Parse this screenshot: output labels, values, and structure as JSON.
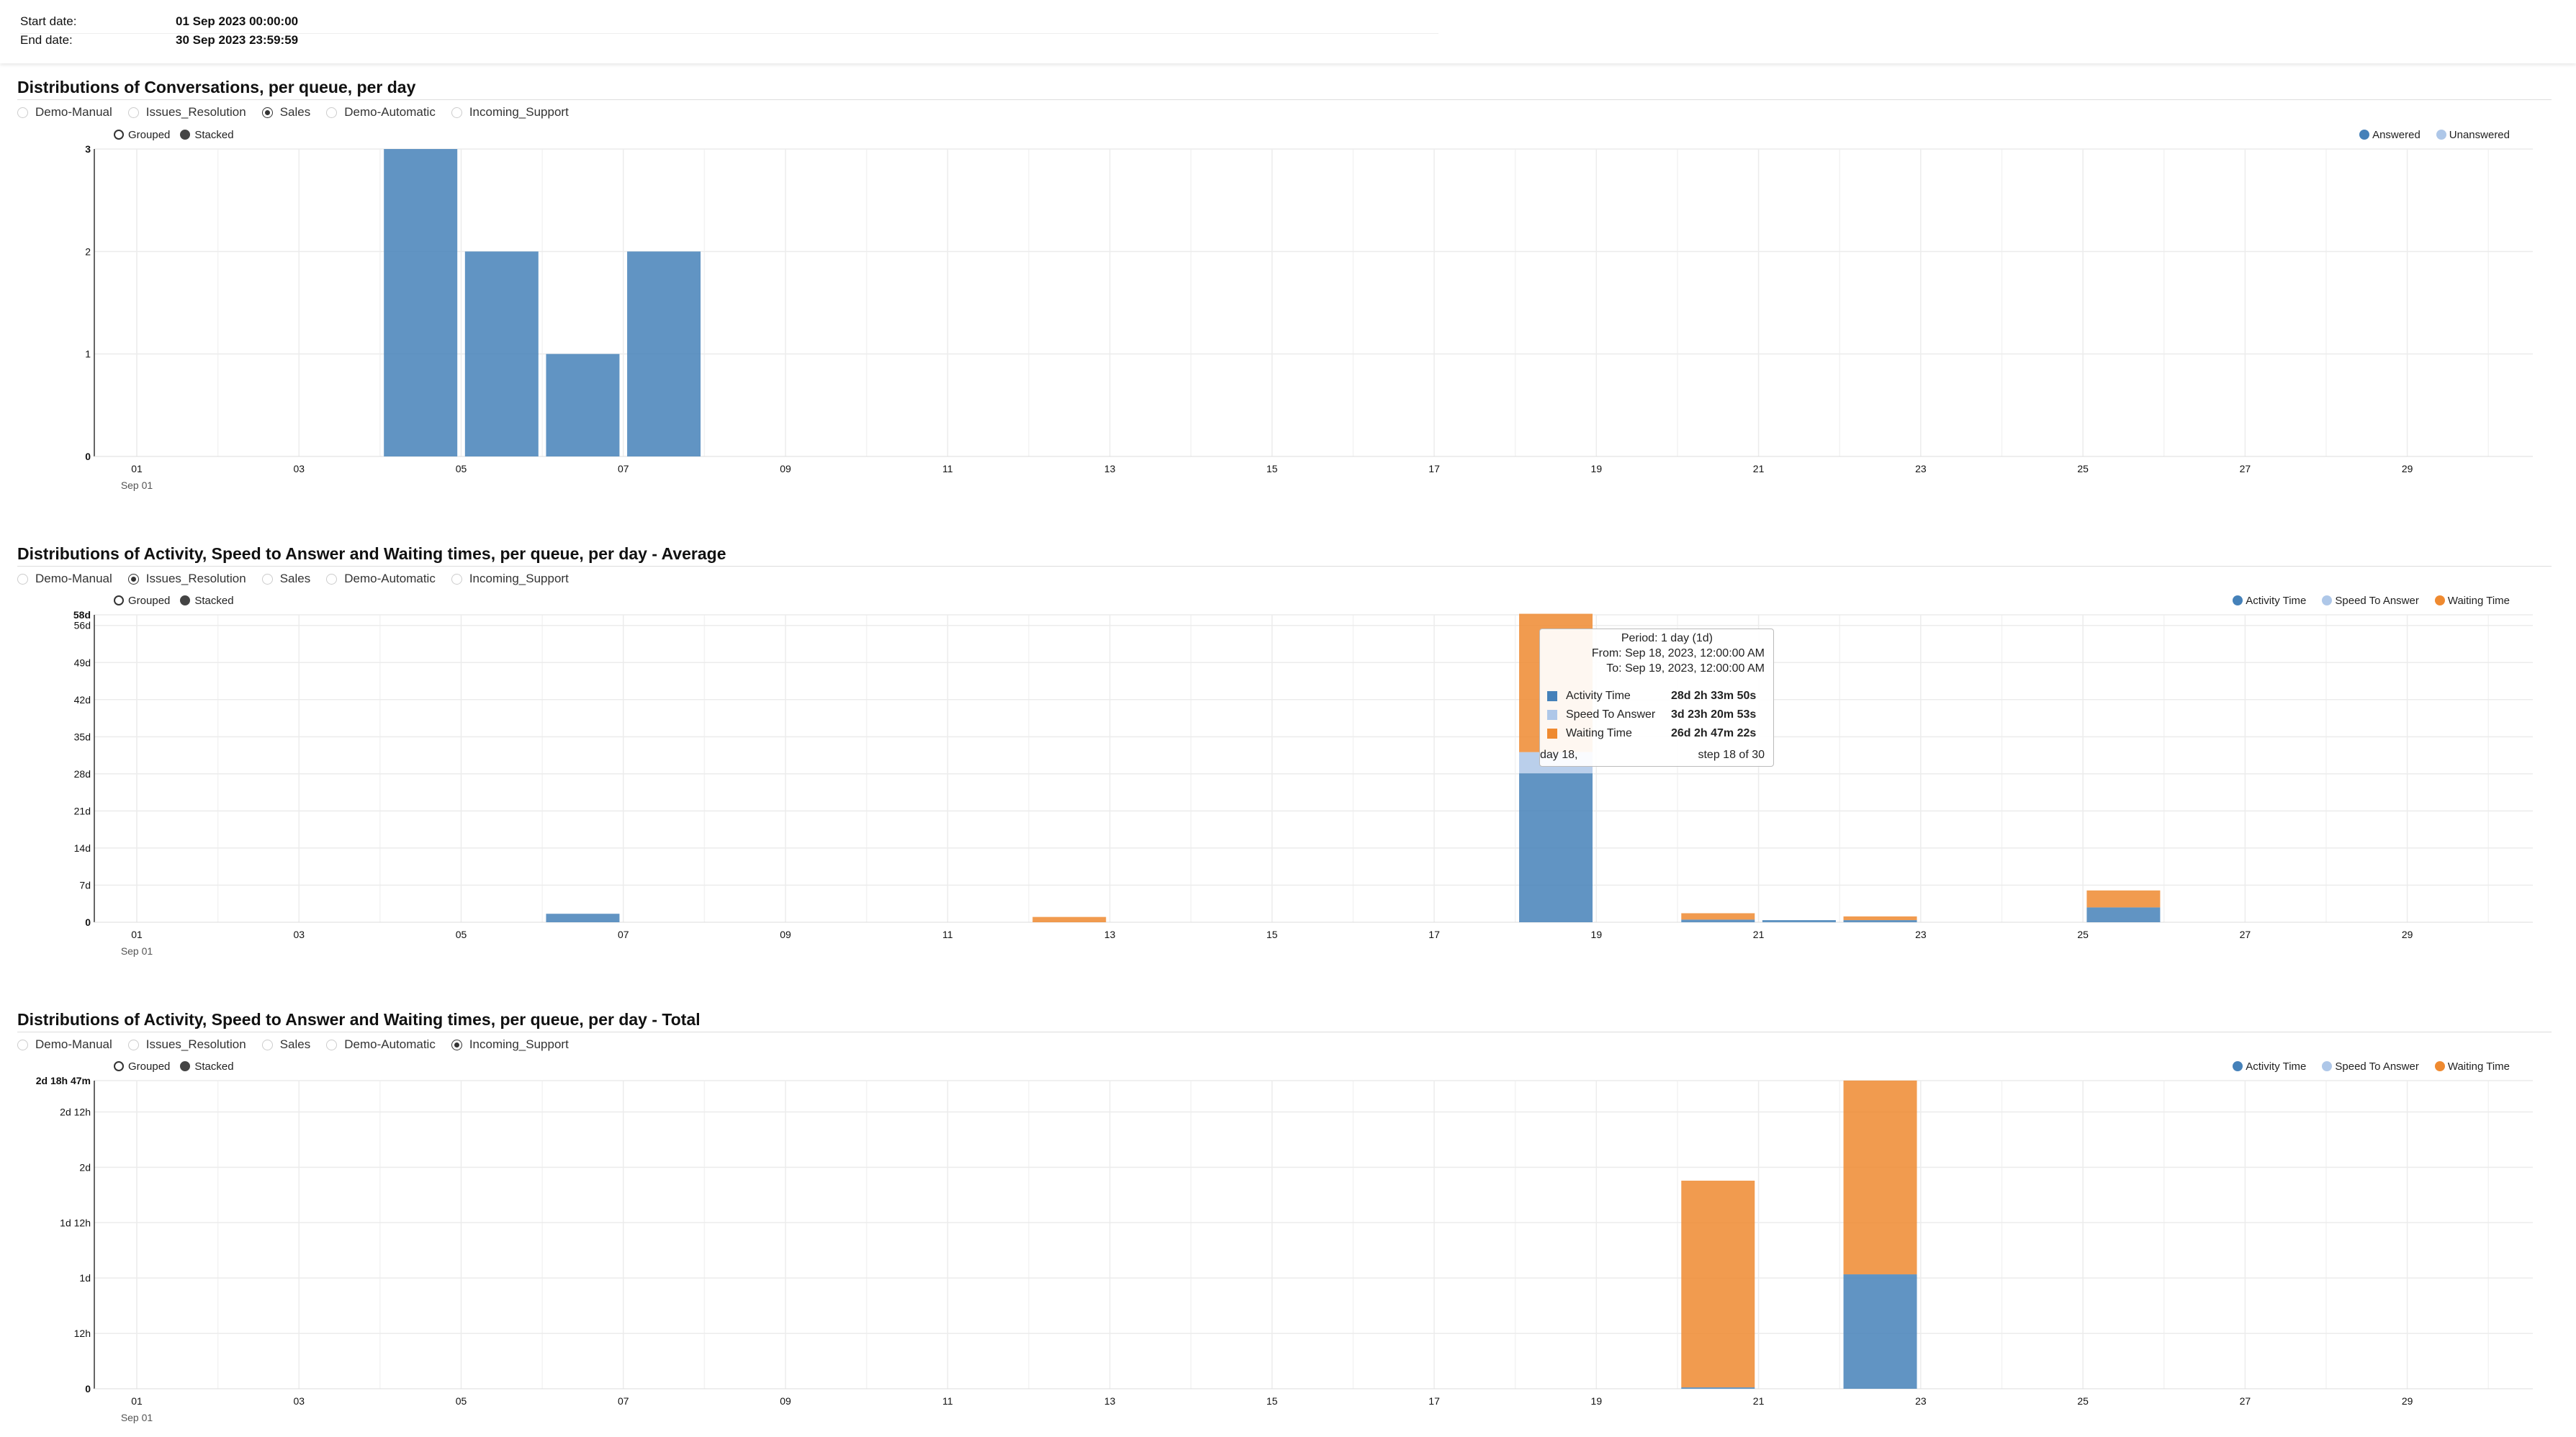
{
  "header": {
    "start_label": "Start date:",
    "start_value": "01 Sep 2023 00:00:00",
    "end_label": "End date:",
    "end_value": "30 Sep 2023 23:59:59"
  },
  "colors": {
    "answered": "#4581b9",
    "unanswered": "#aec7e8",
    "activity": "#4581b9",
    "speed": "#aec7e8",
    "waiting": "#ef8a30"
  },
  "queues": [
    "Demo-Manual",
    "Issues_Resolution",
    "Sales",
    "Demo-Automatic",
    "Incoming_Support"
  ],
  "modes": [
    "Grouped",
    "Stacked"
  ],
  "sections": [
    {
      "title": "Distributions of Conversations, per queue, per day",
      "selected_queue": 2,
      "legend": [
        {
          "label": "Answered",
          "color": "#4581b9"
        },
        {
          "label": "Unanswered",
          "color": "#aec7e8"
        }
      ]
    },
    {
      "title": "Distributions of Activity, Speed to Answer and Waiting times, per queue, per day - Average",
      "selected_queue": 1,
      "legend": [
        {
          "label": "Activity Time",
          "color": "#4581b9"
        },
        {
          "label": "Speed To Answer",
          "color": "#aec7e8"
        },
        {
          "label": "Waiting Time",
          "color": "#ef8a30"
        }
      ]
    },
    {
      "title": "Distributions of Activity, Speed to Answer and Waiting times, per queue, per day - Total",
      "selected_queue": 4,
      "legend": [
        {
          "label": "Activity Time",
          "color": "#4581b9"
        },
        {
          "label": "Speed To Answer",
          "color": "#aec7e8"
        },
        {
          "label": "Waiting Time",
          "color": "#ef8a30"
        }
      ]
    }
  ],
  "chart_data": [
    {
      "type": "bar",
      "mode": "stacked",
      "x_unit": "day of Sep 2023",
      "x_tick_labels": [
        "01",
        "03",
        "05",
        "07",
        "09",
        "11",
        "13",
        "15",
        "17",
        "19",
        "21",
        "23",
        "25",
        "27",
        "29"
      ],
      "x_sublabel": "Sep 01",
      "y_unit": "conversations",
      "ylim": [
        0,
        3
      ],
      "y_tick_labels": [
        "0",
        "1",
        "2",
        "3"
      ],
      "y_ticks": [
        0,
        1,
        2,
        3
      ],
      "grid": true,
      "legend_position": "top-right",
      "series": [
        {
          "name": "Answered",
          "color": "#4581b9",
          "points": [
            [
              4,
              3
            ],
            [
              5,
              2
            ],
            [
              6,
              1
            ],
            [
              7,
              2
            ]
          ]
        },
        {
          "name": "Unanswered",
          "color": "#aec7e8",
          "points": []
        }
      ]
    },
    {
      "type": "bar",
      "mode": "stacked",
      "x_unit": "day of Sep 2023",
      "x_tick_labels": [
        "01",
        "03",
        "05",
        "07",
        "09",
        "11",
        "13",
        "15",
        "17",
        "19",
        "21",
        "23",
        "25",
        "27",
        "29"
      ],
      "x_sublabel": "Sep 01",
      "y_unit": "days",
      "ylim": [
        0,
        58
      ],
      "y_tick_labels": [
        "0",
        "7d",
        "14d",
        "21d",
        "28d",
        "35d",
        "42d",
        "49d",
        "56d",
        "58d"
      ],
      "y_ticks": [
        0,
        7,
        14,
        21,
        28,
        35,
        42,
        49,
        56,
        58
      ],
      "grid": true,
      "legend_position": "top-right",
      "series": [
        {
          "name": "Activity Time",
          "color": "#4581b9",
          "points": [
            [
              6,
              1.6
            ],
            [
              18,
              28.1
            ],
            [
              20,
              0.5
            ],
            [
              21,
              0.4
            ],
            [
              22,
              0.4
            ],
            [
              25,
              2.8
            ]
          ]
        },
        {
          "name": "Speed To Answer",
          "color": "#aec7e8",
          "points": [
            [
              18,
              4.0
            ]
          ]
        },
        {
          "name": "Waiting Time",
          "color": "#ef8a30",
          "points": [
            [
              12,
              1.0
            ],
            [
              18,
              26.1
            ],
            [
              20,
              1.2
            ],
            [
              22,
              0.7
            ],
            [
              25,
              3.2
            ]
          ]
        }
      ],
      "tooltip": {
        "day": 18,
        "title": "Period: 1 day (1d)",
        "from": "From: Sep 18, 2023, 12:00:00 AM",
        "to": "To: Sep 19, 2023, 12:00:00 AM",
        "rows": [
          {
            "name": "Activity Time",
            "value": "28d 2h 33m 50s",
            "color": "#4581b9"
          },
          {
            "name": "Speed To Answer",
            "value": "3d 23h 20m 53s",
            "color": "#aec7e8"
          },
          {
            "name": "Waiting Time",
            "value": "26d 2h 47m 22s",
            "color": "#ef8a30"
          }
        ],
        "footer_left": "day 18,",
        "footer_right": "step 18 of 30"
      }
    },
    {
      "type": "bar",
      "mode": "stacked",
      "x_unit": "day of Sep 2023",
      "x_tick_labels": [
        "01",
        "03",
        "05",
        "07",
        "09",
        "11",
        "13",
        "15",
        "17",
        "19",
        "21",
        "23",
        "25",
        "27",
        "29"
      ],
      "x_sublabel": "Sep 01",
      "y_unit": "hours",
      "ylim": [
        0,
        66.78
      ],
      "y_tick_labels": [
        "0",
        "12h",
        "1d",
        "1d 12h",
        "2d",
        "2d 12h",
        "2d 18h 47m"
      ],
      "y_ticks": [
        0,
        12,
        24,
        36,
        48,
        60,
        66.78
      ],
      "grid": true,
      "legend_position": "top-right",
      "series": [
        {
          "name": "Activity Time",
          "color": "#4581b9",
          "points": [
            [
              20,
              0.3
            ],
            [
              22,
              24.8
            ]
          ]
        },
        {
          "name": "Speed To Answer",
          "color": "#aec7e8",
          "points": []
        },
        {
          "name": "Waiting Time",
          "color": "#ef8a30",
          "points": [
            [
              20,
              44.8
            ],
            [
              22,
              42.0
            ]
          ]
        }
      ]
    }
  ]
}
